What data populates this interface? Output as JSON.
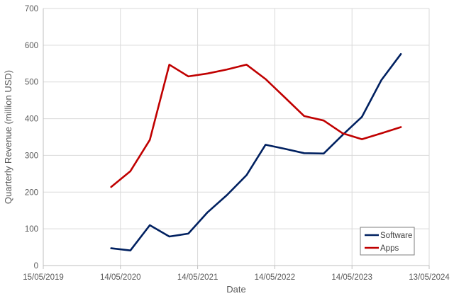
{
  "chart_data": {
    "type": "line",
    "title": "",
    "xlabel": "Date",
    "ylabel": "Quarterly Revenue (million USD)",
    "xlim": [
      "2019-05-15",
      "2024-05-13"
    ],
    "ylim": [
      0,
      700
    ],
    "x_ticks": [
      "15/05/2019",
      "14/05/2020",
      "14/05/2021",
      "14/05/2022",
      "14/05/2023",
      "13/05/2024"
    ],
    "y_ticks": [
      0,
      100,
      200,
      300,
      400,
      500,
      600,
      700
    ],
    "grid": true,
    "legend": "bottom-right",
    "series": [
      {
        "name": "Software",
        "color": "#002060",
        "points": [
          {
            "x": "2020-03-31",
            "y": 47
          },
          {
            "x": "2020-06-30",
            "y": 41
          },
          {
            "x": "2020-09-30",
            "y": 110
          },
          {
            "x": "2020-12-31",
            "y": 79
          },
          {
            "x": "2021-03-31",
            "y": 87
          },
          {
            "x": "2021-06-30",
            "y": 145
          },
          {
            "x": "2021-09-30",
            "y": 192
          },
          {
            "x": "2021-12-31",
            "y": 246
          },
          {
            "x": "2022-03-31",
            "y": 329
          },
          {
            "x": "2022-06-30",
            "y": 318
          },
          {
            "x": "2022-09-30",
            "y": 306
          },
          {
            "x": "2022-12-31",
            "y": 305
          },
          {
            "x": "2023-03-31",
            "y": 356
          },
          {
            "x": "2023-06-30",
            "y": 405
          },
          {
            "x": "2023-09-30",
            "y": 505
          },
          {
            "x": "2023-12-31",
            "y": 576
          }
        ]
      },
      {
        "name": "Apps",
        "color": "#C00000",
        "points": [
          {
            "x": "2020-03-31",
            "y": 214
          },
          {
            "x": "2020-06-30",
            "y": 257
          },
          {
            "x": "2020-09-30",
            "y": 342
          },
          {
            "x": "2020-12-31",
            "y": 547
          },
          {
            "x": "2021-03-31",
            "y": 515
          },
          {
            "x": "2021-06-30",
            "y": 523
          },
          {
            "x": "2021-09-30",
            "y": 534
          },
          {
            "x": "2021-12-31",
            "y": 547
          },
          {
            "x": "2022-03-31",
            "y": 508
          },
          {
            "x": "2022-06-30",
            "y": 458
          },
          {
            "x": "2022-09-30",
            "y": 407
          },
          {
            "x": "2022-12-31",
            "y": 395
          },
          {
            "x": "2023-03-31",
            "y": 360
          },
          {
            "x": "2023-06-30",
            "y": 344
          },
          {
            "x": "2023-09-30",
            "y": 360
          },
          {
            "x": "2023-12-31",
            "y": 377
          }
        ]
      }
    ]
  },
  "colors": {
    "grid": "#d9d9d9",
    "axis": "#bfbfbf",
    "legend_border": "#7f7f7f"
  }
}
